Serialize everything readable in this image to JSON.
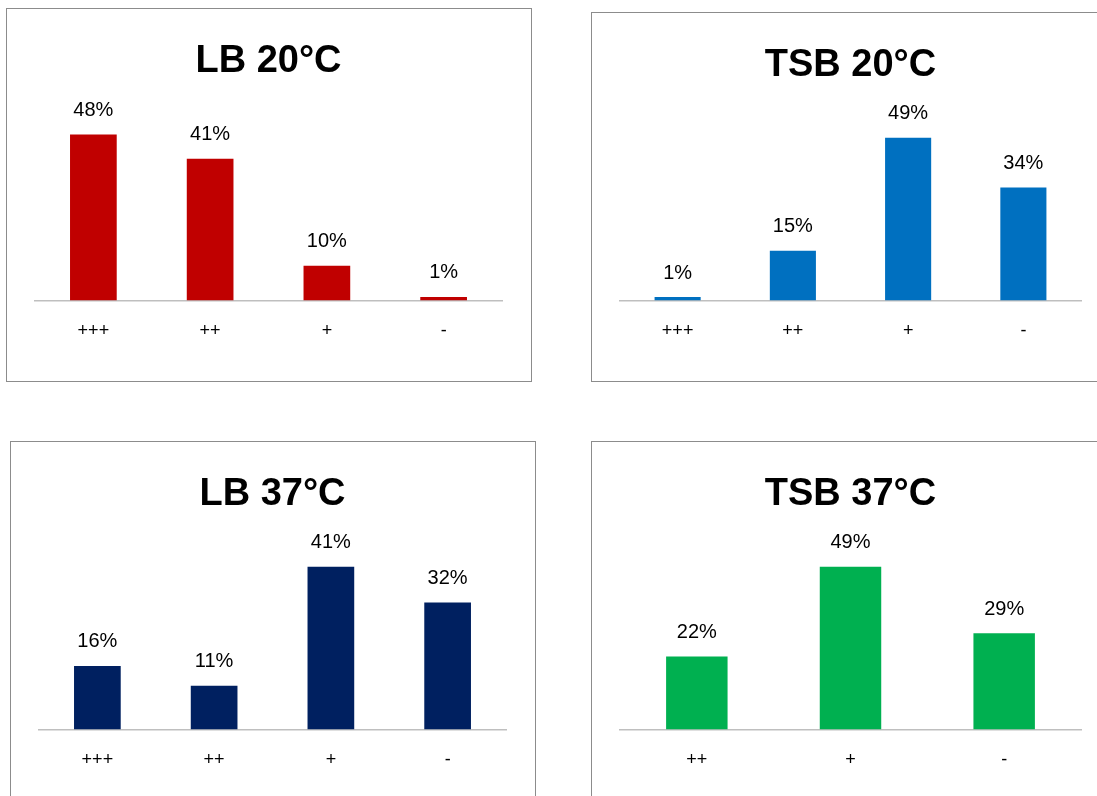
{
  "chart_data": [
    {
      "type": "bar",
      "title": "LB 20°C",
      "categories": [
        "+++",
        "++",
        "+",
        "-"
      ],
      "values": [
        48,
        41,
        10,
        1
      ],
      "value_labels": [
        "48%",
        "41%",
        "10%",
        "1%"
      ],
      "color": "#c00000",
      "legend": false,
      "grid": false,
      "tick_labels": "x"
    },
    {
      "type": "bar",
      "title": "TSB 20°C",
      "categories": [
        "+++",
        "++",
        "+",
        "-"
      ],
      "values": [
        1,
        15,
        49,
        34
      ],
      "value_labels": [
        "1%",
        "15%",
        "49%",
        "34%"
      ],
      "color": "#0070c0",
      "legend": false,
      "grid": false,
      "tick_labels": "x"
    },
    {
      "type": "bar",
      "title": "LB 37°C",
      "categories": [
        "+++",
        "++",
        "+",
        "-"
      ],
      "values": [
        16,
        11,
        41,
        32
      ],
      "value_labels": [
        "16%",
        "11%",
        "41%",
        "32%"
      ],
      "color": "#002060",
      "legend": false,
      "grid": false,
      "tick_labels": "x"
    },
    {
      "type": "bar",
      "title": "TSB 37°C",
      "categories": [
        "++",
        "+",
        "-"
      ],
      "values": [
        22,
        49,
        29
      ],
      "value_labels": [
        "22%",
        "49%",
        "29%"
      ],
      "color": "#00b050",
      "legend": false,
      "grid": false,
      "tick_labels": "x"
    }
  ]
}
